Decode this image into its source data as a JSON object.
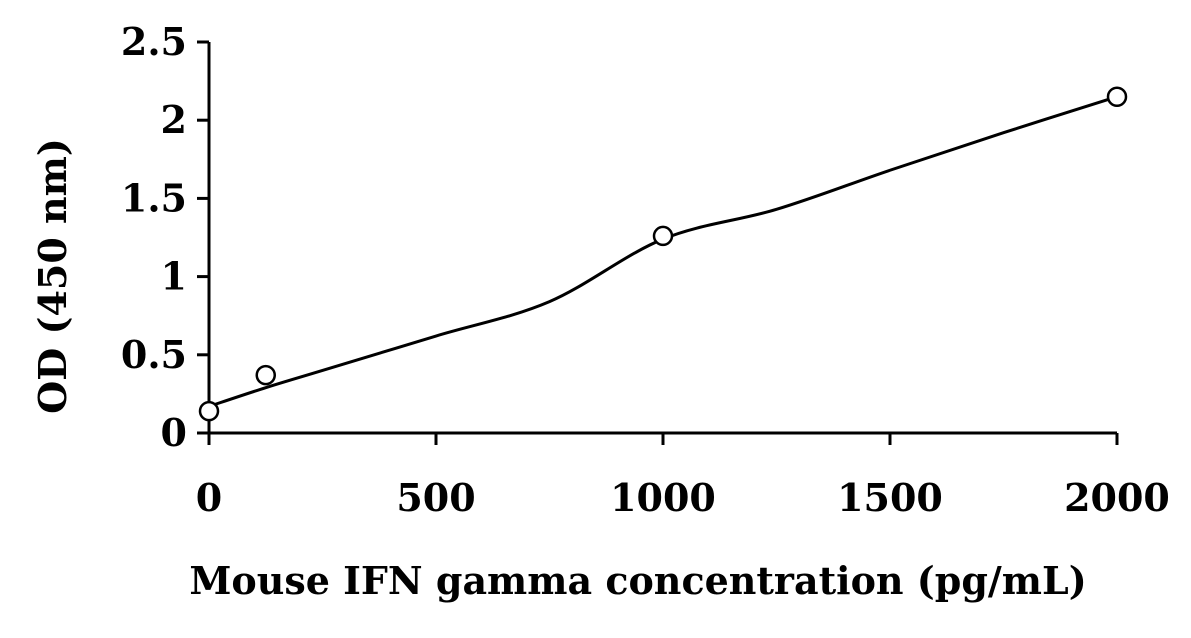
{
  "chart_data": {
    "type": "scatter",
    "title": "",
    "xlabel": "Mouse IFN gamma concentration (pg/mL)",
    "ylabel": "OD (450 nm)",
    "xlim": [
      0,
      2000
    ],
    "ylim": [
      0,
      2.5
    ],
    "x_ticks": [
      0,
      500,
      1000,
      1500,
      2000
    ],
    "x_tick_labels": [
      "0",
      "500",
      "1000",
      "1500",
      "2000"
    ],
    "y_ticks": [
      0,
      0.5,
      1,
      1.5,
      2,
      2.5
    ],
    "y_tick_labels": [
      "0",
      "0.5",
      "1",
      "1.5",
      "2",
      "2.5"
    ],
    "grid": false,
    "legend": "none",
    "points": {
      "x": [
        0,
        125,
        1000,
        2000
      ],
      "y": [
        0.14,
        0.37,
        1.26,
        2.15
      ]
    },
    "fit_curve": {
      "x": [
        0,
        125,
        250,
        500,
        750,
        1000,
        1250,
        1500,
        1750,
        2000
      ],
      "y": [
        0.17,
        0.29,
        0.4,
        0.62,
        0.84,
        1.24,
        1.43,
        1.68,
        1.92,
        2.15
      ]
    },
    "marker": "open-circle",
    "colors": {
      "line": "#000000",
      "marker_fill": "#ffffff"
    }
  }
}
